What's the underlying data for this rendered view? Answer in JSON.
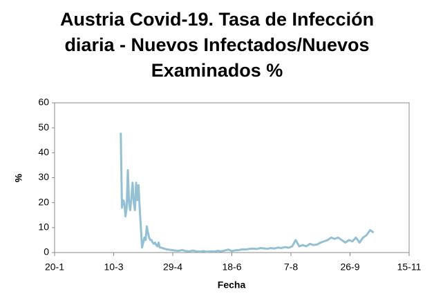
{
  "chart_data": {
    "type": "line",
    "title": "Austria Covid-19. Tasa de Infección diaria - Nuevos Infectados/Nuevos Examinados %",
    "xlabel": "Fecha",
    "ylabel": "%",
    "color": "#93c0d3",
    "xlim": [
      20,
      320
    ],
    "xticks": [
      {
        "value": 20,
        "label": "20-1"
      },
      {
        "value": 70,
        "label": "10-3"
      },
      {
        "value": 120,
        "label": "29-4"
      },
      {
        "value": 170,
        "label": "18-6"
      },
      {
        "value": 220,
        "label": "7-8"
      },
      {
        "value": 270,
        "label": "26-9"
      },
      {
        "value": 320,
        "label": "15-11"
      }
    ],
    "ylim": [
      0,
      60
    ],
    "yticks": [
      0,
      10,
      20,
      30,
      40,
      50,
      60
    ],
    "grid": false,
    "x": [
      76,
      77,
      78,
      79,
      80,
      81,
      82,
      83,
      84,
      85,
      86,
      87,
      88,
      89,
      90,
      91,
      92,
      93,
      94,
      95,
      96,
      97,
      98,
      99,
      100,
      101,
      102,
      103,
      104,
      105,
      106,
      107,
      108,
      109,
      110,
      113,
      116,
      119,
      122,
      125,
      128,
      131,
      134,
      137,
      140,
      143,
      146,
      149,
      152,
      155,
      158,
      161,
      164,
      167,
      170,
      173,
      176,
      179,
      182,
      185,
      188,
      191,
      194,
      197,
      200,
      203,
      206,
      209,
      212,
      215,
      218,
      221,
      224,
      227,
      230,
      233,
      236,
      239,
      242,
      245,
      248,
      251,
      254,
      257,
      260,
      263,
      266,
      269,
      272,
      275,
      278,
      281,
      284,
      287,
      290
    ],
    "values": [
      48,
      18,
      21,
      20,
      14.5,
      18,
      33,
      20,
      17,
      22,
      28,
      20,
      17,
      28,
      21,
      27,
      18,
      10,
      2,
      4,
      6,
      5,
      10.5,
      8,
      6,
      5,
      5,
      4,
      3.5,
      4,
      3,
      2.5,
      4,
      2,
      2,
      1.5,
      1.2,
      1,
      0.8,
      0.7,
      1,
      0.6,
      0.5,
      0.8,
      0.5,
      0.4,
      0.6,
      0.3,
      0.5,
      0.4,
      0.7,
      0.5,
      0.8,
      1.2,
      0.6,
      0.9,
      1,
      1.3,
      1.2,
      1.5,
      1.6,
      1.4,
      1.8,
      1.7,
      1.5,
      1.8,
      1.6,
      2,
      1.8,
      2.2,
      1.9,
      2.5,
      5,
      2.5,
      3,
      2.5,
      3.5,
      3,
      3.2,
      4,
      4.5,
      5,
      6,
      5.5,
      6,
      5,
      4,
      5,
      4.5,
      6,
      4,
      6,
      7,
      9,
      8
    ]
  }
}
